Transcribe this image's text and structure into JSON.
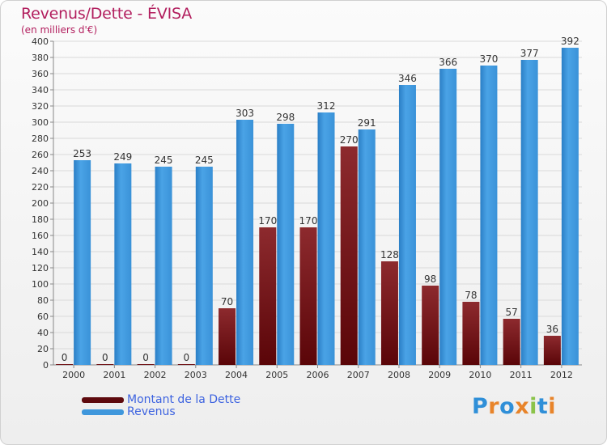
{
  "header": {
    "title": "Revenus/Dette - ÉVISA",
    "subtitle": "(en milliers d'€)"
  },
  "chart_data": {
    "type": "bar",
    "title": "Revenus/Dette - ÉVISA",
    "ylabel": "(en milliers d'€)",
    "categories": [
      "2000",
      "2001",
      "2002",
      "2003",
      "2004",
      "2005",
      "2006",
      "2007",
      "2008",
      "2009",
      "2010",
      "2011",
      "2012"
    ],
    "series": [
      {
        "name": "Montant de la Dette",
        "color": "#7a1014",
        "values": [
          0,
          0,
          0,
          0,
          70,
          170,
          170,
          270,
          128,
          98,
          78,
          57,
          36
        ]
      },
      {
        "name": "Revenus",
        "color": "#3f97dc",
        "values": [
          253,
          249,
          245,
          245,
          303,
          298,
          312,
          291,
          346,
          366,
          370,
          377,
          392
        ]
      }
    ],
    "ylim": [
      0,
      400
    ],
    "yticks": [
      0,
      20,
      40,
      60,
      80,
      100,
      120,
      140,
      160,
      180,
      200,
      220,
      240,
      260,
      280,
      300,
      320,
      340,
      360,
      380,
      400
    ],
    "grid": true,
    "legend_position": "bottom-left"
  },
  "legend": {
    "items": [
      {
        "label": "Montant de la Dette",
        "color": "#6b0c10"
      },
      {
        "label": "Revenus",
        "color": "#3f97dc"
      }
    ]
  },
  "logo": {
    "letters": [
      "P",
      "r",
      "o",
      "x",
      "i",
      "t",
      "i"
    ],
    "colors": [
      "#2f8fd8",
      "#e8842a",
      "#2f8fd8",
      "#e8842a",
      "#8bc34a",
      "#2f8fd8",
      "#e8842a"
    ]
  }
}
